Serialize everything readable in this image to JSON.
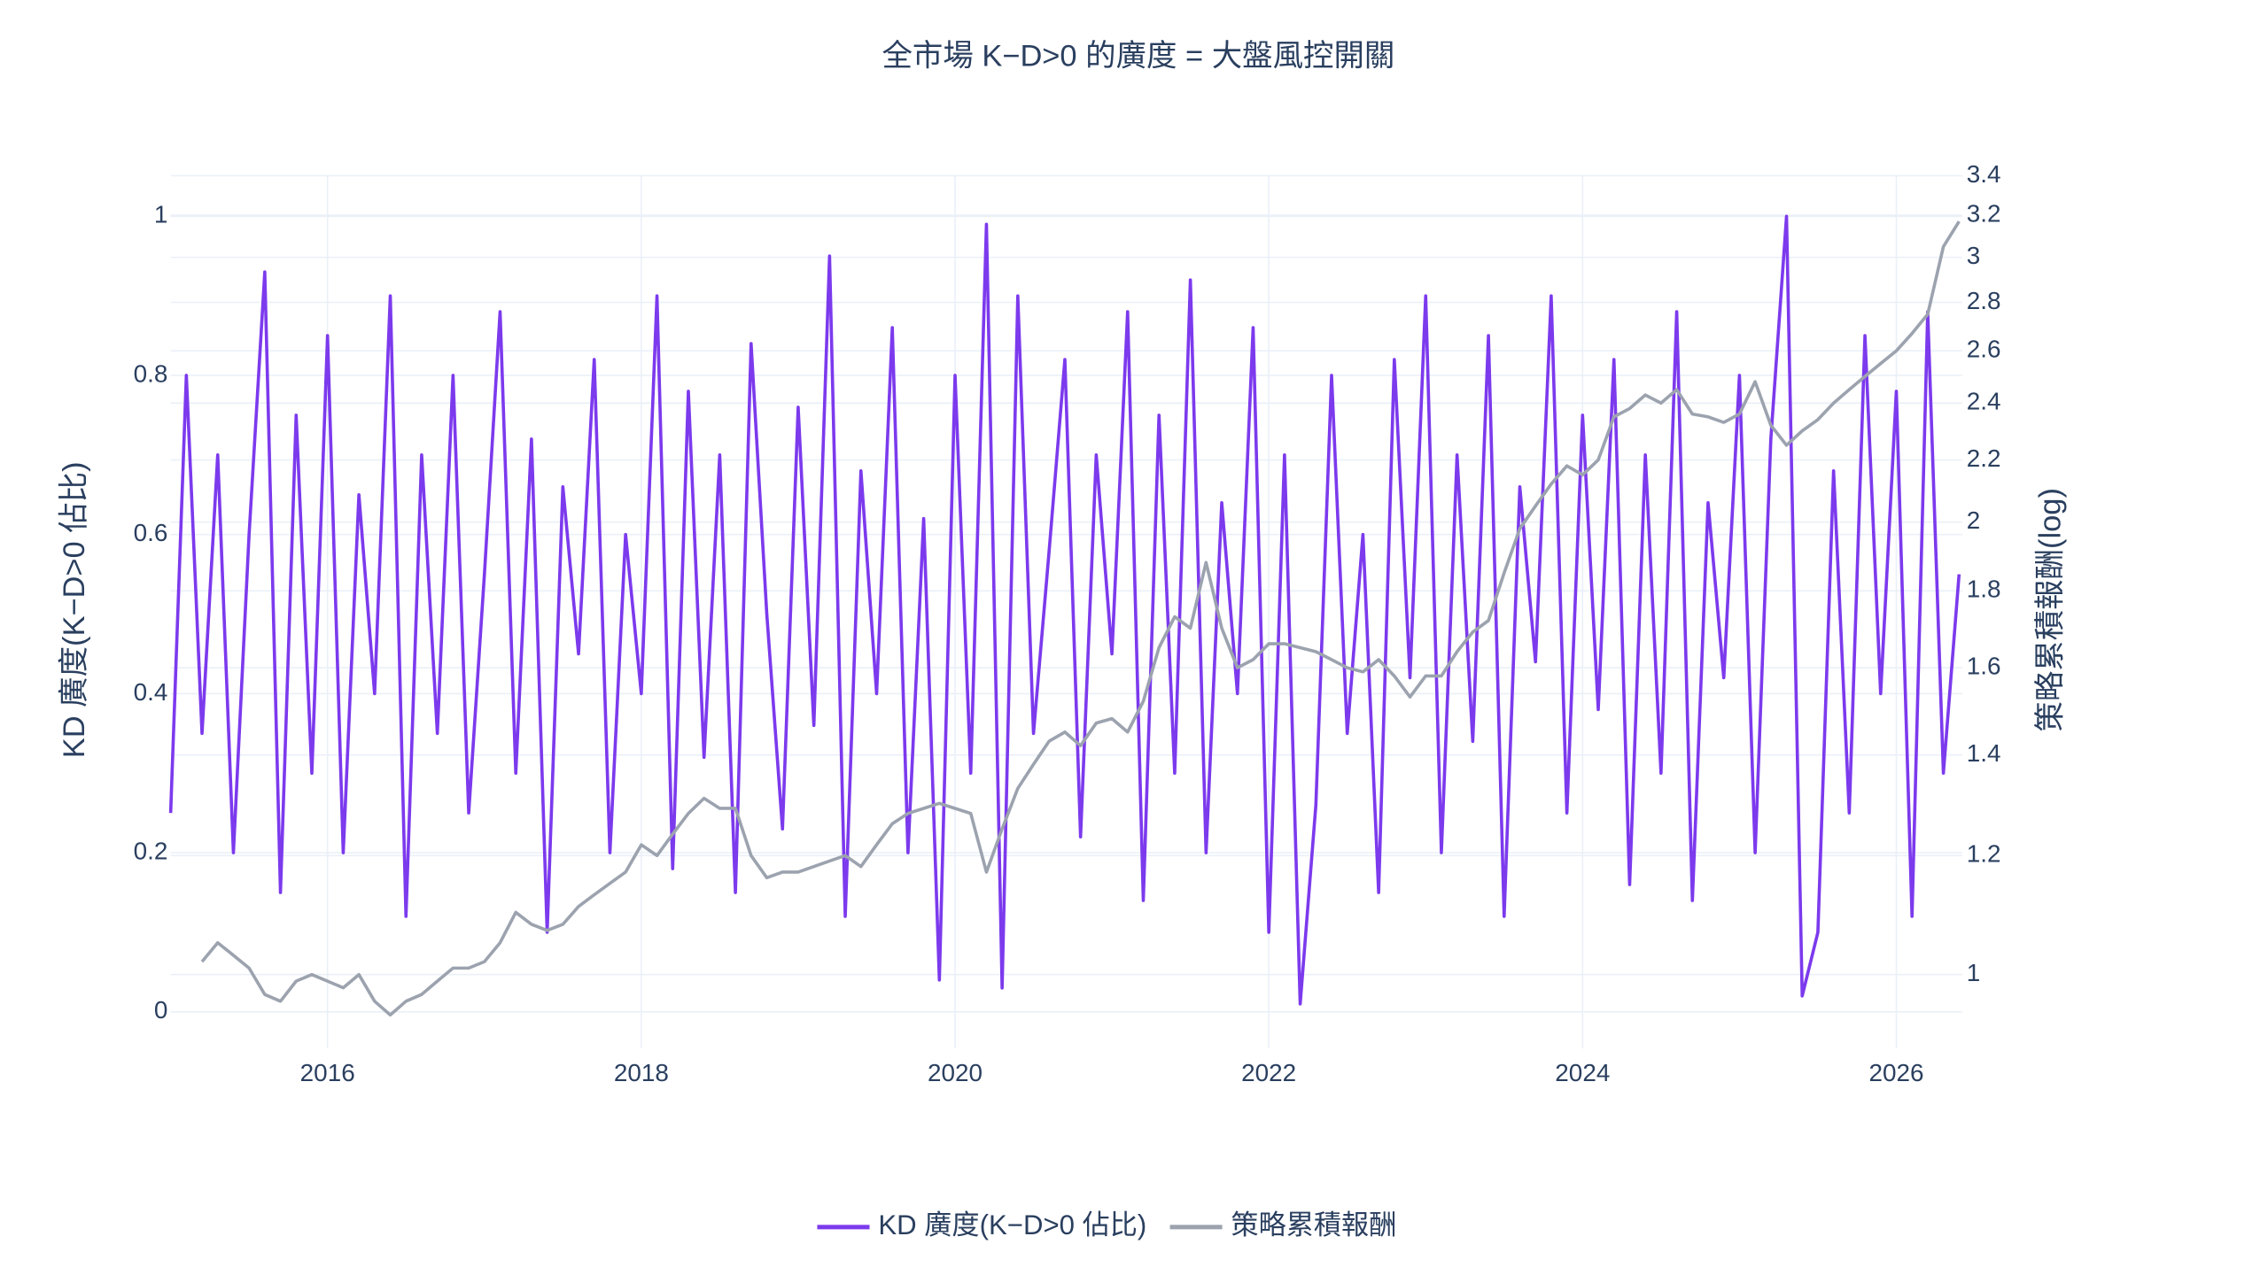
{
  "chart_data": {
    "type": "line",
    "title": "全市場 K−D>0 的廣度 = 大盤風控開關",
    "y_label": "KD 廣度(K−D>0 佔比)",
    "y2_label": "策略累積報酬(log)",
    "xlim": [
      2015.0,
      2026.42
    ],
    "xticks": [
      2016,
      2018,
      2020,
      2022,
      2024,
      2026
    ],
    "ylim": [
      -0.046,
      1.051
    ],
    "yticks": [
      0,
      0.2,
      0.4,
      0.6,
      0.8,
      1
    ],
    "y2lim": [
      0.893,
      3.4
    ],
    "y2ticks": [
      1,
      1.2,
      1.4,
      1.6,
      1.8,
      2,
      2.2,
      2.4,
      2.6,
      2.8,
      3,
      3.2,
      3.4
    ],
    "y2log": true,
    "grid": true,
    "legend": "bottom",
    "x": [
      2015.0,
      2015.1,
      2015.2,
      2015.3,
      2015.4,
      2015.5,
      2015.6,
      2015.7,
      2015.8,
      2015.9,
      2016.0,
      2016.1,
      2016.2,
      2016.3,
      2016.4,
      2016.5,
      2016.6,
      2016.7,
      2016.8,
      2016.9,
      2017.0,
      2017.1,
      2017.2,
      2017.3,
      2017.4,
      2017.5,
      2017.6,
      2017.7,
      2017.8,
      2017.9,
      2018.0,
      2018.1,
      2018.2,
      2018.3,
      2018.4,
      2018.5,
      2018.6,
      2018.7,
      2018.8,
      2018.9,
      2019.0,
      2019.1,
      2019.2,
      2019.3,
      2019.4,
      2019.5,
      2019.6,
      2019.7,
      2019.8,
      2019.9,
      2020.0,
      2020.1,
      2020.2,
      2020.3,
      2020.4,
      2020.5,
      2020.6,
      2020.7,
      2020.8,
      2020.9,
      2021.0,
      2021.1,
      2021.2,
      2021.3,
      2021.4,
      2021.5,
      2021.6,
      2021.7,
      2021.8,
      2021.9,
      2022.0,
      2022.1,
      2022.2,
      2022.3,
      2022.4,
      2022.5,
      2022.6,
      2022.7,
      2022.8,
      2022.9,
      2023.0,
      2023.1,
      2023.2,
      2023.3,
      2023.4,
      2023.5,
      2023.6,
      2023.7,
      2023.8,
      2023.9,
      2024.0,
      2024.1,
      2024.2,
      2024.3,
      2024.4,
      2024.5,
      2024.6,
      2024.7,
      2024.8,
      2024.9,
      2025.0,
      2025.1,
      2025.2,
      2025.3,
      2025.4,
      2025.5,
      2025.6,
      2025.7,
      2025.8,
      2025.9,
      2026.0,
      2026.1,
      2026.2,
      2026.3,
      2026.4
    ],
    "series": [
      {
        "name": "KD 廣度(K−D>0 佔比)",
        "color": "#7c3aed",
        "axis": "y",
        "values": [
          0.25,
          0.8,
          0.35,
          0.7,
          0.2,
          0.6,
          0.93,
          0.15,
          0.75,
          0.3,
          0.85,
          0.2,
          0.65,
          0.4,
          0.9,
          0.12,
          0.7,
          0.35,
          0.8,
          0.25,
          0.55,
          0.88,
          0.3,
          0.72,
          0.1,
          0.66,
          0.45,
          0.82,
          0.2,
          0.6,
          0.4,
          0.9,
          0.18,
          0.78,
          0.32,
          0.7,
          0.15,
          0.84,
          0.5,
          0.23,
          0.76,
          0.36,
          0.95,
          0.12,
          0.68,
          0.4,
          0.86,
          0.2,
          0.62,
          0.04,
          0.8,
          0.3,
          0.99,
          0.03,
          0.9,
          0.35,
          0.58,
          0.82,
          0.22,
          0.7,
          0.45,
          0.88,
          0.14,
          0.75,
          0.3,
          0.92,
          0.2,
          0.64,
          0.4,
          0.86,
          0.1,
          0.7,
          0.01,
          0.26,
          0.8,
          0.35,
          0.6,
          0.15,
          0.82,
          0.42,
          0.9,
          0.2,
          0.7,
          0.34,
          0.85,
          0.12,
          0.66,
          0.44,
          0.9,
          0.25,
          0.75,
          0.38,
          0.82,
          0.16,
          0.7,
          0.3,
          0.88,
          0.14,
          0.64,
          0.42,
          0.8,
          0.2,
          0.72,
          1.0,
          0.02,
          0.1,
          0.68,
          0.25,
          0.85,
          0.4,
          0.78,
          0.12,
          0.88,
          0.3,
          0.55
        ]
      },
      {
        "name": "策略累積報酬",
        "color": "#9ca3af",
        "axis": "y2",
        "values": [
          null,
          null,
          1.02,
          1.05,
          1.03,
          1.01,
          0.97,
          0.96,
          0.99,
          1.0,
          0.99,
          0.98,
          1.0,
          0.96,
          0.94,
          0.96,
          0.97,
          0.99,
          1.01,
          1.01,
          1.02,
          1.05,
          1.1,
          1.08,
          1.07,
          1.08,
          1.11,
          1.13,
          1.15,
          1.17,
          1.22,
          1.2,
          1.24,
          1.28,
          1.31,
          1.29,
          1.29,
          1.2,
          1.16,
          1.17,
          1.17,
          1.18,
          1.19,
          1.2,
          1.18,
          1.22,
          1.26,
          1.28,
          1.29,
          1.3,
          1.29,
          1.28,
          1.17,
          1.25,
          1.33,
          1.38,
          1.43,
          1.45,
          1.42,
          1.47,
          1.48,
          1.45,
          1.52,
          1.65,
          1.73,
          1.7,
          1.88,
          1.7,
          1.6,
          1.62,
          1.66,
          1.66,
          1.65,
          1.64,
          1.62,
          1.6,
          1.59,
          1.62,
          1.58,
          1.53,
          1.58,
          1.58,
          1.64,
          1.69,
          1.72,
          1.85,
          1.98,
          2.05,
          2.12,
          2.18,
          2.15,
          2.2,
          2.35,
          2.38,
          2.43,
          2.4,
          2.45,
          2.36,
          2.35,
          2.33,
          2.36,
          2.48,
          2.32,
          2.25,
          2.3,
          2.34,
          2.4,
          2.45,
          2.5,
          2.55,
          2.6,
          2.67,
          2.75,
          3.05,
          3.17
        ]
      }
    ]
  }
}
